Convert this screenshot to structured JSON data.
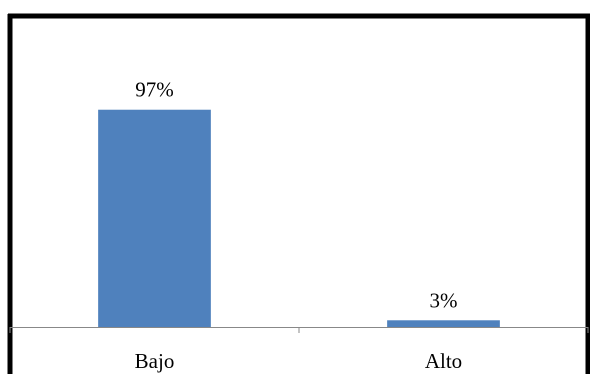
{
  "chart_data": {
    "type": "bar",
    "categories": [
      "Bajo",
      "Alto"
    ],
    "values": [
      97,
      3
    ],
    "data_labels": [
      "97%",
      "3%"
    ],
    "title": "",
    "xlabel": "",
    "ylabel": "",
    "ylim": [
      0,
      100
    ],
    "grid": false,
    "legend": "none",
    "bar_color": "#4f81bd",
    "axis_color": "#888888",
    "border_color": "#000000"
  }
}
